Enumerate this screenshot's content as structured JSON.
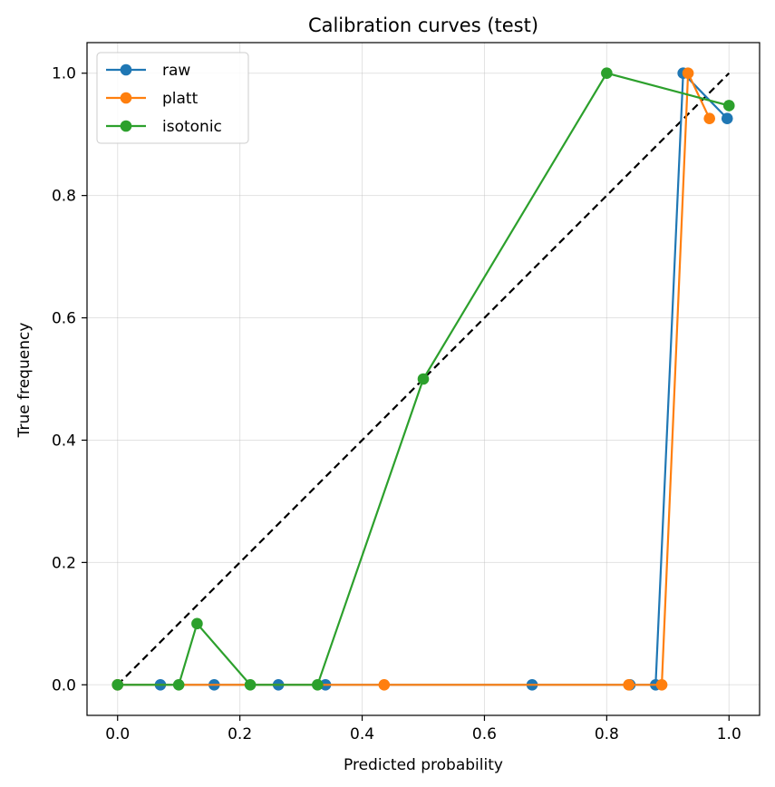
{
  "chart_data": {
    "type": "line",
    "title": "Calibration curves (test)",
    "xlabel": "Predicted probability",
    "ylabel": "True frequency",
    "xlim": [
      -0.05,
      1.05
    ],
    "ylim": [
      -0.05,
      1.05
    ],
    "xticks": [
      "0.0",
      "0.2",
      "0.4",
      "0.6",
      "0.8",
      "1.0"
    ],
    "yticks": [
      "0.0",
      "0.2",
      "0.4",
      "0.6",
      "0.8",
      "1.0"
    ],
    "grid": true,
    "legend_position": "top-left",
    "reference_line": {
      "x": [
        0,
        1
      ],
      "y": [
        0,
        1
      ],
      "style": "dashed",
      "color": "#000000"
    },
    "series": [
      {
        "name": "raw",
        "color": "#1f77b4",
        "x": [
          0.0,
          0.07,
          0.158,
          0.263,
          0.34,
          0.678,
          0.838,
          0.88,
          0.925,
          0.997
        ],
        "y": [
          0.0,
          0.0,
          0.0,
          0.0,
          0.0,
          0.0,
          0.0,
          0.0,
          1.0,
          0.926
        ]
      },
      {
        "name": "platt",
        "color": "#ff7f0e",
        "x": [
          0.0,
          0.436,
          0.836,
          0.89,
          0.933,
          0.968
        ],
        "y": [
          0.0,
          0.0,
          0.0,
          0.0,
          1.0,
          0.926
        ]
      },
      {
        "name": "isotonic",
        "color": "#2ca02c",
        "x": [
          0.0,
          0.1,
          0.13,
          0.217,
          0.327,
          0.5,
          0.8,
          1.0
        ],
        "y": [
          0.0,
          0.0,
          0.1,
          0.0,
          0.0,
          0.5,
          1.0,
          0.947
        ]
      }
    ]
  }
}
